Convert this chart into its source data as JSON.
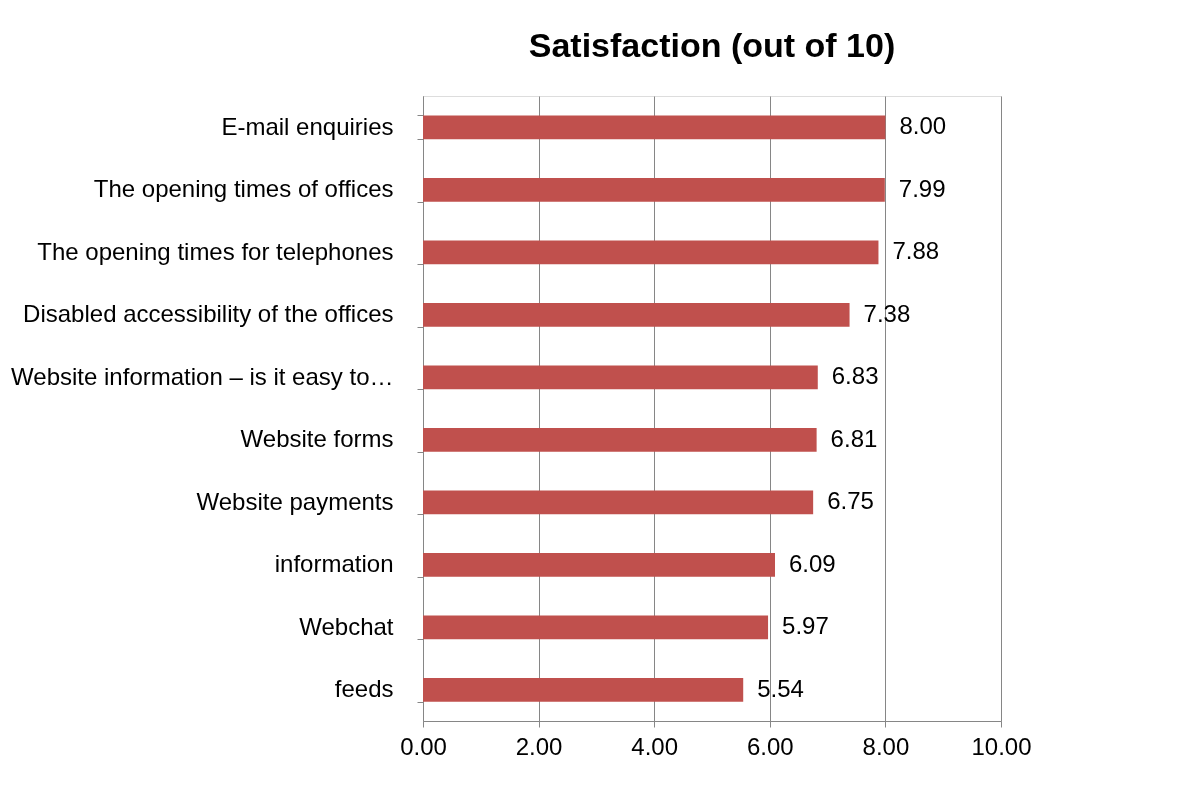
{
  "chart_data": {
    "type": "bar",
    "orientation": "horizontal",
    "title": "Satisfaction (out of 10)",
    "categories": [
      "E-mail enquiries",
      "The opening times of offices",
      "The opening times for telephones",
      "Disabled accessibility of the offices",
      "Website information – is it easy to…",
      "Website forms",
      "Website payments",
      "information",
      "Webchat",
      "feeds"
    ],
    "values": [
      8.0,
      7.99,
      7.88,
      7.38,
      6.83,
      6.81,
      6.75,
      6.09,
      5.97,
      5.54
    ],
    "value_labels": [
      "8.00",
      "7.99",
      "7.88",
      "7.38",
      "6.83",
      "6.81",
      "6.75",
      "6.09",
      "5.97",
      "5.54"
    ],
    "color": "#c0504d",
    "xlim": [
      0,
      10
    ],
    "xticks": [
      {
        "value": 0,
        "label": "0.00"
      },
      {
        "value": 2,
        "label": "2.00"
      },
      {
        "value": 4,
        "label": "4.00"
      },
      {
        "value": 6,
        "label": "6.00"
      },
      {
        "value": 8,
        "label": "8.00"
      },
      {
        "value": 10,
        "label": "10.00"
      }
    ],
    "grid": "x"
  }
}
